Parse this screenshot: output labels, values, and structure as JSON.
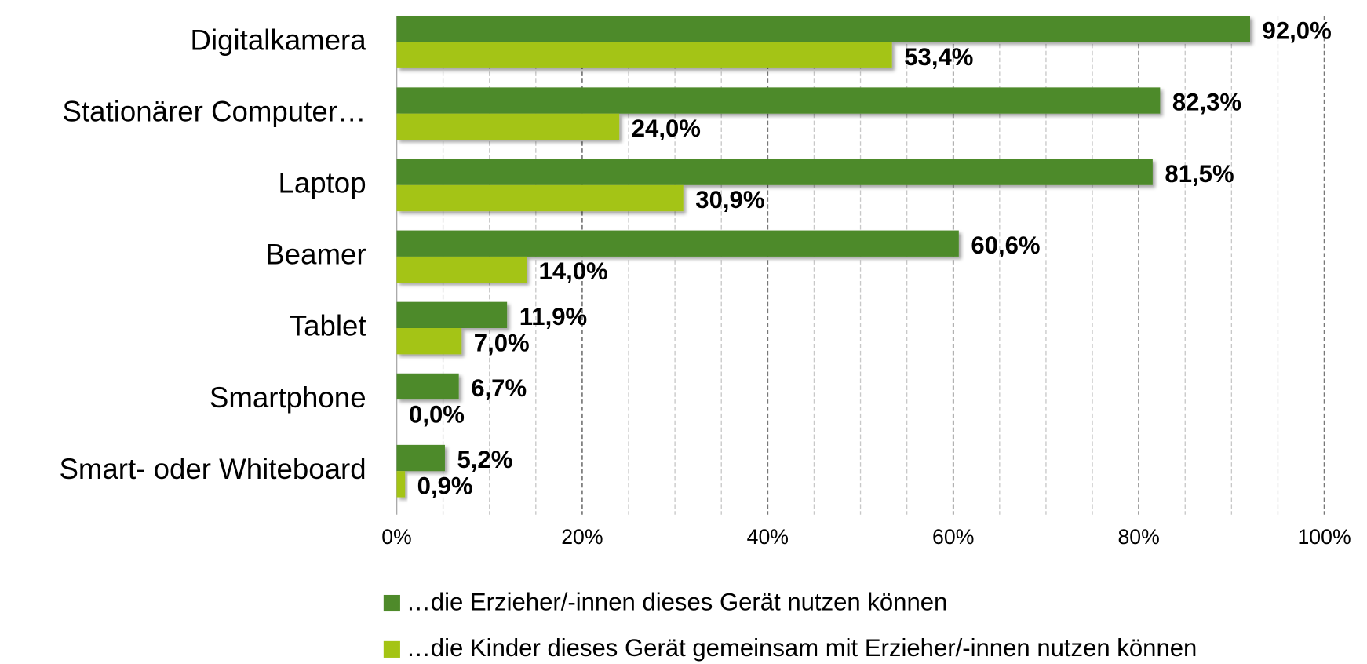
{
  "chart_data": {
    "type": "bar",
    "orientation": "horizontal",
    "categories": [
      "Digitalkamera",
      "Stationärer Computer…",
      "Laptop",
      "Beamer",
      "Tablet",
      "Smartphone",
      "Smart- oder Whiteboard"
    ],
    "series": [
      {
        "name": "…die Erzieher/-innen dieses Gerät nutzen können",
        "color": "#4e8a2a",
        "values": [
          92.0,
          82.3,
          81.5,
          60.6,
          11.9,
          6.7,
          5.2
        ],
        "value_labels": [
          "92,0%",
          "82,3%",
          "81,5%",
          "60,6%",
          "11,9%",
          "6,7%",
          "5,2%"
        ]
      },
      {
        "name": "…die Kinder dieses Gerät gemeinsam mit Erzieher/-innen nutzen können",
        "color": "#a4c414",
        "values": [
          53.4,
          24.0,
          30.9,
          14.0,
          7.0,
          0.0,
          0.9
        ],
        "value_labels": [
          "53,4%",
          "24,0%",
          "30,9%",
          "14,0%",
          "7,0%",
          "0,0%",
          "0,9%"
        ]
      }
    ],
    "xlim": [
      0,
      100
    ],
    "xticks": [
      {
        "value": 0,
        "label": "0%"
      },
      {
        "value": 20,
        "label": "20%"
      },
      {
        "value": 40,
        "label": "40%"
      },
      {
        "value": 60,
        "label": "60%"
      },
      {
        "value": 80,
        "label": "80%"
      },
      {
        "value": 100,
        "label": "100%"
      }
    ],
    "minor_xticks": [
      5,
      10,
      15,
      25,
      30,
      35,
      45,
      50,
      55,
      65,
      70,
      75,
      85,
      90,
      95
    ],
    "grid": true,
    "legend": "bottom"
  }
}
